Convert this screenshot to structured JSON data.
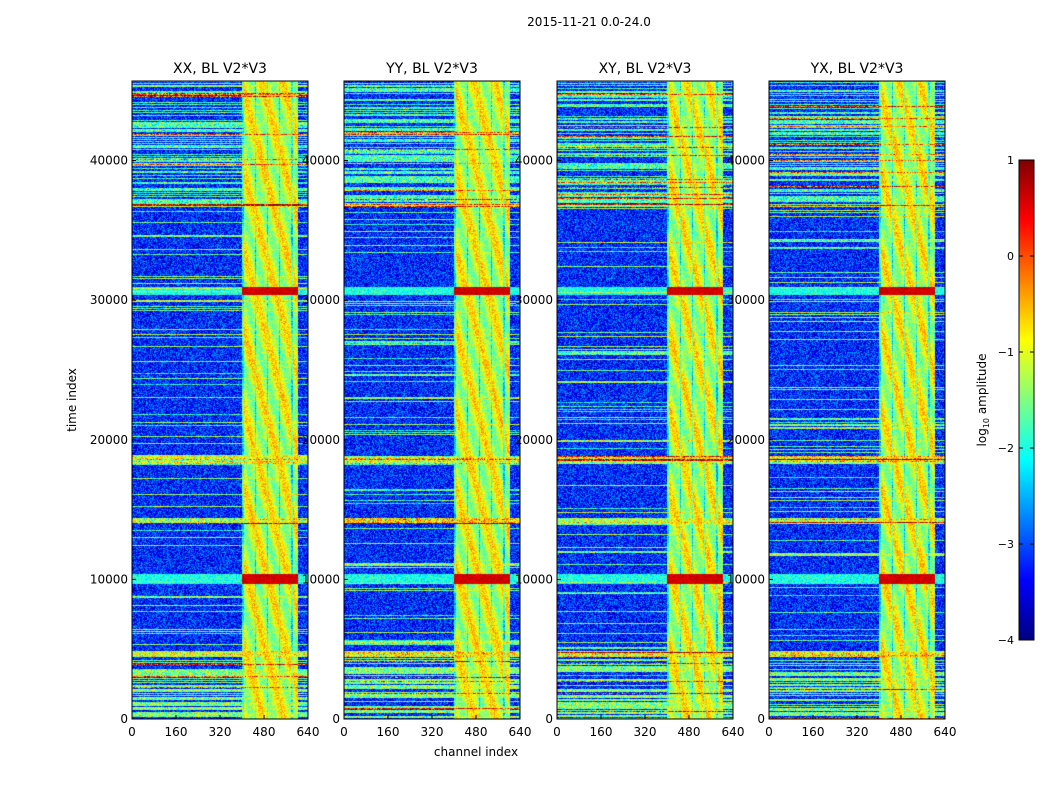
{
  "figure": {
    "suptitle": "2015-11-21 0.0-24.0",
    "xlabel": "channel index",
    "ylabel": "time index",
    "colorbar_label_main": "log",
    "colorbar_label_sub": "10",
    "colorbar_label_rest": " amplitude"
  },
  "chart_data": {
    "type": "heatmap",
    "panels": [
      {
        "title": "XX, BL V2*V3"
      },
      {
        "title": "YY, BL V2*V3"
      },
      {
        "title": "XY, BL V2*V3"
      },
      {
        "title": "YX, BL V2*V3"
      }
    ],
    "xlim": [
      0,
      640
    ],
    "ylim": [
      0,
      45700
    ],
    "x_ticks": [
      0,
      160,
      320,
      480,
      640
    ],
    "y_ticks": [
      0,
      10000,
      20000,
      30000,
      40000
    ],
    "colorbar": {
      "range": [
        -4,
        1
      ],
      "ticks": [
        1,
        0,
        -1,
        -2,
        -3,
        -4
      ],
      "tick_labels": [
        "1",
        "0",
        "−1",
        "−2",
        "−3",
        "−4"
      ],
      "colormap": "jet"
    },
    "features": {
      "background_level": -3.2,
      "band_channels": [
        400,
        600
      ],
      "band_level": -1.1,
      "hot_time_ranges": [
        [
          9700,
          10400
        ],
        [
          30400,
          31000
        ]
      ],
      "hot_level": 0.6,
      "bright_time_ranges": [
        [
          36700,
          36950
        ],
        [
          18300,
          18900
        ],
        [
          14000,
          14400
        ],
        [
          4500,
          4900
        ]
      ],
      "lowfreq_noise_range": [
        0,
        4500
      ]
    }
  },
  "colors": {
    "jet_stops": [
      "#00007f",
      "#0000ff",
      "#007fff",
      "#00ffff",
      "#7fff7f",
      "#ffff00",
      "#ff7f00",
      "#ff0000",
      "#7f0000"
    ]
  }
}
